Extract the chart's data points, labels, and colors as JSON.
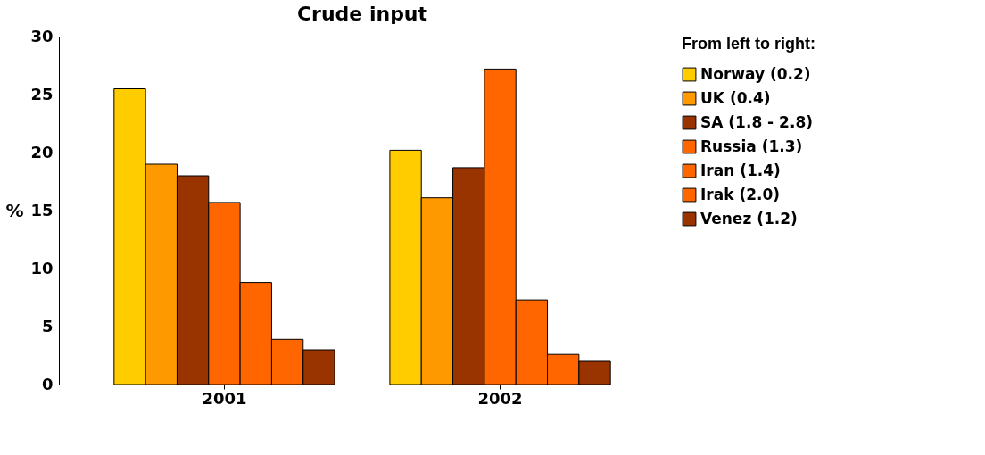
{
  "chart_data": {
    "type": "bar",
    "title": "Crude input",
    "ylabel": "%",
    "legend_title": "From left to right:",
    "categories": [
      "2001",
      "2002"
    ],
    "series": [
      {
        "name": "Norway (0.2)",
        "color": "#ffcc00",
        "values": [
          25.5,
          20.2
        ]
      },
      {
        "name": "UK (0.4)",
        "color": "#ff9900",
        "values": [
          19,
          16.1
        ]
      },
      {
        "name": "SA (1.8 - 2.8)",
        "color": "#993300",
        "values": [
          18,
          18.7
        ]
      },
      {
        "name": "Russia (1.3)",
        "color": "#ff6600",
        "values": [
          15.7,
          27.2
        ]
      },
      {
        "name": "Iran (1.4)",
        "color": "#ff6600",
        "values": [
          8.8,
          7.3
        ]
      },
      {
        "name": "Irak (2.0)",
        "color": "#ff6600",
        "values": [
          3.9,
          2.6
        ]
      },
      {
        "name": "Venez (1.2)",
        "color": "#993300",
        "values": [
          3,
          2
        ]
      }
    ],
    "ylim": [
      0,
      30
    ],
    "yticks": [
      0,
      5,
      10,
      15,
      20,
      25,
      30
    ],
    "grid": "y",
    "legend": "right"
  }
}
